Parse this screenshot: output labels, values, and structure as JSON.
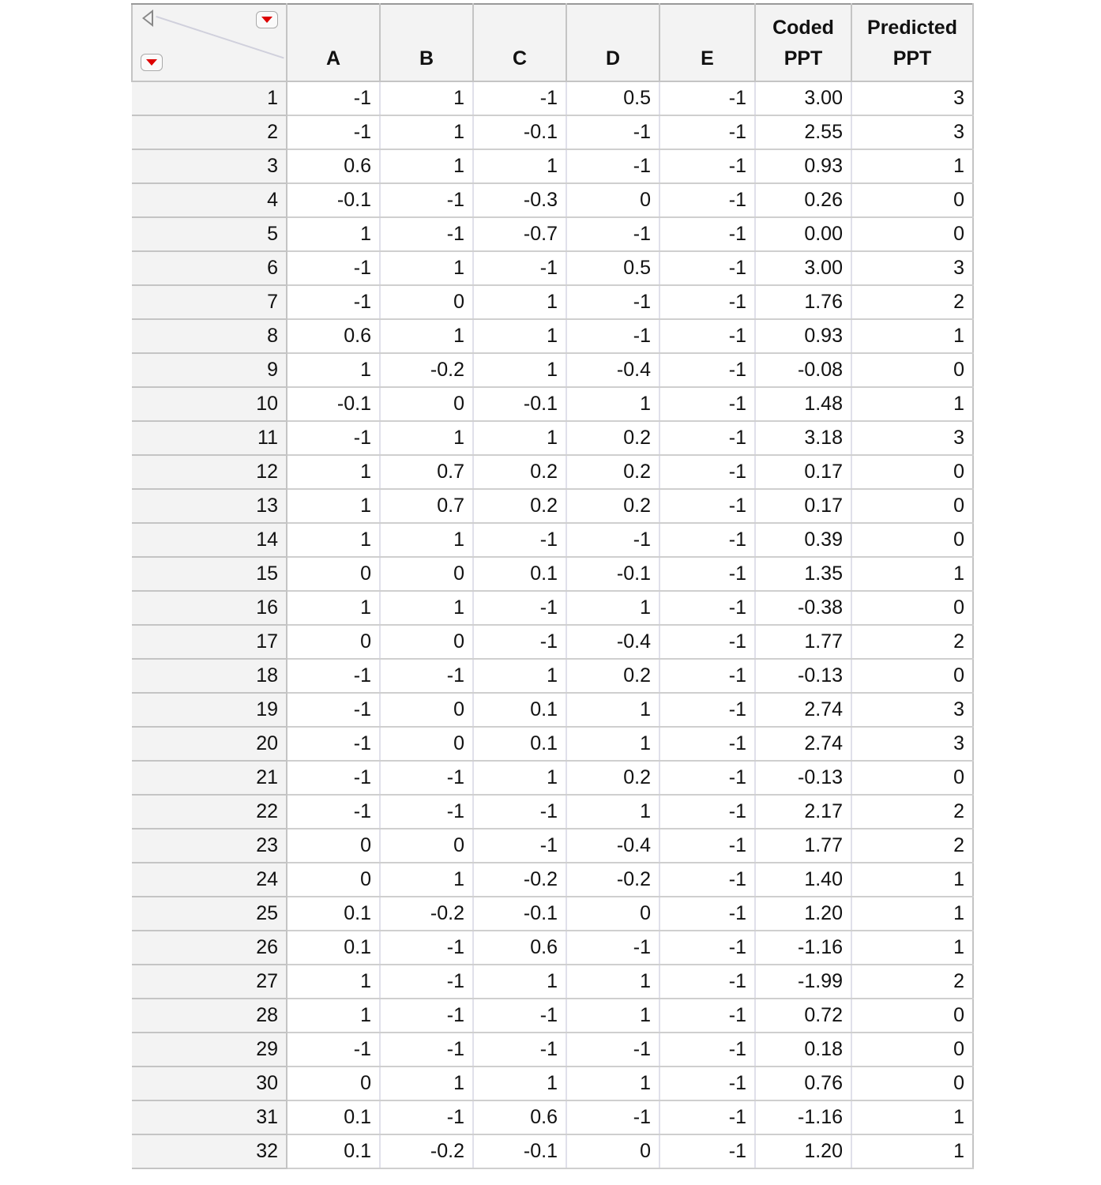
{
  "columns": [
    "A",
    "B",
    "C",
    "D",
    "E",
    "Coded\nPPT",
    "Predicted\nPPT"
  ],
  "icons": {
    "collapse": "triangle-left-icon",
    "menu": "red-dropdown-icon"
  },
  "rows": [
    [
      "1",
      "-1",
      "1",
      "-1",
      "0.5",
      "-1",
      "3.00",
      "3"
    ],
    [
      "2",
      "-1",
      "1",
      "-0.1",
      "-1",
      "-1",
      "2.55",
      "3"
    ],
    [
      "3",
      "0.6",
      "1",
      "1",
      "-1",
      "-1",
      "0.93",
      "1"
    ],
    [
      "4",
      "-0.1",
      "-1",
      "-0.3",
      "0",
      "-1",
      "0.26",
      "0"
    ],
    [
      "5",
      "1",
      "-1",
      "-0.7",
      "-1",
      "-1",
      "0.00",
      "0"
    ],
    [
      "6",
      "-1",
      "1",
      "-1",
      "0.5",
      "-1",
      "3.00",
      "3"
    ],
    [
      "7",
      "-1",
      "0",
      "1",
      "-1",
      "-1",
      "1.76",
      "2"
    ],
    [
      "8",
      "0.6",
      "1",
      "1",
      "-1",
      "-1",
      "0.93",
      "1"
    ],
    [
      "9",
      "1",
      "-0.2",
      "1",
      "-0.4",
      "-1",
      "-0.08",
      "0"
    ],
    [
      "10",
      "-0.1",
      "0",
      "-0.1",
      "1",
      "-1",
      "1.48",
      "1"
    ],
    [
      "11",
      "-1",
      "1",
      "1",
      "0.2",
      "-1",
      "3.18",
      "3"
    ],
    [
      "12",
      "1",
      "0.7",
      "0.2",
      "0.2",
      "-1",
      "0.17",
      "0"
    ],
    [
      "13",
      "1",
      "0.7",
      "0.2",
      "0.2",
      "-1",
      "0.17",
      "0"
    ],
    [
      "14",
      "1",
      "1",
      "-1",
      "-1",
      "-1",
      "0.39",
      "0"
    ],
    [
      "15",
      "0",
      "0",
      "0.1",
      "-0.1",
      "-1",
      "1.35",
      "1"
    ],
    [
      "16",
      "1",
      "1",
      "-1",
      "1",
      "-1",
      "-0.38",
      "0"
    ],
    [
      "17",
      "0",
      "0",
      "-1",
      "-0.4",
      "-1",
      "1.77",
      "2"
    ],
    [
      "18",
      "-1",
      "-1",
      "1",
      "0.2",
      "-1",
      "-0.13",
      "0"
    ],
    [
      "19",
      "-1",
      "0",
      "0.1",
      "1",
      "-1",
      "2.74",
      "3"
    ],
    [
      "20",
      "-1",
      "0",
      "0.1",
      "1",
      "-1",
      "2.74",
      "3"
    ],
    [
      "21",
      "-1",
      "-1",
      "1",
      "0.2",
      "-1",
      "-0.13",
      "0"
    ],
    [
      "22",
      "-1",
      "-1",
      "-1",
      "1",
      "-1",
      "2.17",
      "2"
    ],
    [
      "23",
      "0",
      "0",
      "-1",
      "-0.4",
      "-1",
      "1.77",
      "2"
    ],
    [
      "24",
      "0",
      "1",
      "-0.2",
      "-0.2",
      "-1",
      "1.40",
      "1"
    ],
    [
      "25",
      "0.1",
      "-0.2",
      "-0.1",
      "0",
      "-1",
      "1.20",
      "1"
    ],
    [
      "26",
      "0.1",
      "-1",
      "0.6",
      "-1",
      "-1",
      "-1.16",
      "1"
    ],
    [
      "27",
      "1",
      "-1",
      "1",
      "1",
      "-1",
      "-1.99",
      "2"
    ],
    [
      "28",
      "1",
      "-1",
      "-1",
      "1",
      "-1",
      "0.72",
      "0"
    ],
    [
      "29",
      "-1",
      "-1",
      "-1",
      "-1",
      "-1",
      "0.18",
      "0"
    ],
    [
      "30",
      "0",
      "1",
      "1",
      "1",
      "-1",
      "0.76",
      "0"
    ],
    [
      "31",
      "0.1",
      "-1",
      "0.6",
      "-1",
      "-1",
      "-1.16",
      "1"
    ],
    [
      "32",
      "0.1",
      "-0.2",
      "-0.1",
      "0",
      "-1",
      "1.20",
      "1"
    ]
  ]
}
